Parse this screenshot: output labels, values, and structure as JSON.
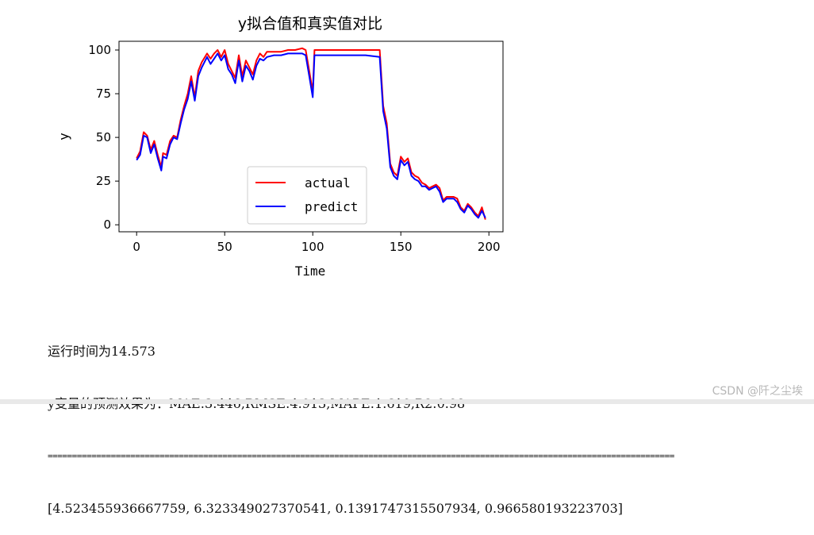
{
  "chart_data": {
    "type": "line",
    "title": "y拟合值和真实值对比",
    "xlabel": "Time",
    "ylabel": "y",
    "xlim": [
      -10,
      208
    ],
    "ylim": [
      -4,
      105
    ],
    "xticks": [
      0,
      50,
      100,
      150,
      200
    ],
    "yticks": [
      0,
      25,
      50,
      75,
      100
    ],
    "grid": false,
    "legend_position": "lower-center",
    "series": [
      {
        "name": "actual",
        "color": "#ff0000",
        "points": [
          [
            0,
            38
          ],
          [
            2,
            42
          ],
          [
            4,
            53
          ],
          [
            6,
            51
          ],
          [
            8,
            43
          ],
          [
            10,
            48
          ],
          [
            12,
            40
          ],
          [
            14,
            33
          ],
          [
            15,
            41
          ],
          [
            17,
            40
          ],
          [
            19,
            48
          ],
          [
            21,
            51
          ],
          [
            23,
            50
          ],
          [
            25,
            60
          ],
          [
            27,
            68
          ],
          [
            29,
            75
          ],
          [
            31,
            85
          ],
          [
            33,
            73
          ],
          [
            35,
            88
          ],
          [
            37,
            93
          ],
          [
            40,
            98
          ],
          [
            42,
            95
          ],
          [
            44,
            98
          ],
          [
            46,
            100
          ],
          [
            48,
            96
          ],
          [
            50,
            100
          ],
          [
            52,
            92
          ],
          [
            54,
            88
          ],
          [
            56,
            84
          ],
          [
            58,
            97
          ],
          [
            60,
            85
          ],
          [
            62,
            94
          ],
          [
            64,
            90
          ],
          [
            66,
            86
          ],
          [
            68,
            94
          ],
          [
            70,
            98
          ],
          [
            72,
            96
          ],
          [
            74,
            99
          ],
          [
            78,
            99
          ],
          [
            82,
            99
          ],
          [
            86,
            100
          ],
          [
            90,
            100
          ],
          [
            94,
            101
          ],
          [
            96,
            100
          ],
          [
            98,
            88
          ],
          [
            100,
            76
          ],
          [
            101,
            100
          ],
          [
            110,
            100
          ],
          [
            120,
            100
          ],
          [
            130,
            100
          ],
          [
            138,
            100
          ],
          [
            140,
            68
          ],
          [
            142,
            58
          ],
          [
            144,
            35
          ],
          [
            146,
            30
          ],
          [
            148,
            28
          ],
          [
            150,
            39
          ],
          [
            152,
            36
          ],
          [
            154,
            38
          ],
          [
            156,
            30
          ],
          [
            158,
            28
          ],
          [
            160,
            27
          ],
          [
            162,
            24
          ],
          [
            164,
            23
          ],
          [
            166,
            21
          ],
          [
            168,
            22
          ],
          [
            170,
            23
          ],
          [
            172,
            21
          ],
          [
            174,
            14
          ],
          [
            176,
            16
          ],
          [
            178,
            16
          ],
          [
            180,
            16
          ],
          [
            182,
            15
          ],
          [
            184,
            10
          ],
          [
            186,
            8
          ],
          [
            188,
            12
          ],
          [
            190,
            10
          ],
          [
            192,
            7
          ],
          [
            194,
            5
          ],
          [
            196,
            10
          ],
          [
            198,
            3
          ]
        ]
      },
      {
        "name": "predict",
        "color": "#0000ff",
        "points": [
          [
            0,
            37
          ],
          [
            2,
            40
          ],
          [
            4,
            51
          ],
          [
            6,
            50
          ],
          [
            8,
            41
          ],
          [
            10,
            46
          ],
          [
            12,
            38
          ],
          [
            14,
            31
          ],
          [
            15,
            39
          ],
          [
            17,
            38
          ],
          [
            19,
            46
          ],
          [
            21,
            50
          ],
          [
            23,
            49
          ],
          [
            25,
            58
          ],
          [
            27,
            66
          ],
          [
            29,
            72
          ],
          [
            31,
            82
          ],
          [
            33,
            71
          ],
          [
            35,
            85
          ],
          [
            37,
            90
          ],
          [
            40,
            96
          ],
          [
            42,
            92
          ],
          [
            44,
            95
          ],
          [
            46,
            98
          ],
          [
            48,
            94
          ],
          [
            50,
            97
          ],
          [
            52,
            89
          ],
          [
            54,
            86
          ],
          [
            56,
            81
          ],
          [
            58,
            94
          ],
          [
            60,
            82
          ],
          [
            62,
            91
          ],
          [
            64,
            88
          ],
          [
            66,
            83
          ],
          [
            68,
            91
          ],
          [
            70,
            95
          ],
          [
            72,
            94
          ],
          [
            74,
            96
          ],
          [
            78,
            97
          ],
          [
            82,
            97
          ],
          [
            86,
            98
          ],
          [
            90,
            98
          ],
          [
            94,
            98
          ],
          [
            96,
            97
          ],
          [
            98,
            85
          ],
          [
            100,
            73
          ],
          [
            101,
            97
          ],
          [
            110,
            97
          ],
          [
            120,
            97
          ],
          [
            130,
            97
          ],
          [
            138,
            96
          ],
          [
            140,
            65
          ],
          [
            142,
            55
          ],
          [
            144,
            33
          ],
          [
            146,
            28
          ],
          [
            148,
            26
          ],
          [
            150,
            37
          ],
          [
            152,
            34
          ],
          [
            154,
            36
          ],
          [
            156,
            28
          ],
          [
            158,
            26
          ],
          [
            160,
            25
          ],
          [
            162,
            22
          ],
          [
            164,
            22
          ],
          [
            166,
            20
          ],
          [
            168,
            21
          ],
          [
            170,
            22
          ],
          [
            172,
            19
          ],
          [
            174,
            13
          ],
          [
            176,
            15
          ],
          [
            178,
            15
          ],
          [
            180,
            15
          ],
          [
            182,
            13
          ],
          [
            184,
            9
          ],
          [
            186,
            7
          ],
          [
            188,
            11
          ],
          [
            190,
            9
          ],
          [
            192,
            6
          ],
          [
            194,
            4
          ],
          [
            196,
            8
          ],
          [
            198,
            4
          ]
        ]
      }
    ]
  },
  "output": {
    "runtime": "运行时间为14.573",
    "metrics": "y变量的预测效果为：MAE:3.446,RMSE:4.913,MAPE:1.619,R2:0.98",
    "rule": "=================================================================================================================================",
    "values": "[4.523455936667759, 6.323349027370541, 0.1391747315507934, 0.966580193223703]"
  },
  "watermark": "CSDN @阡之尘埃"
}
